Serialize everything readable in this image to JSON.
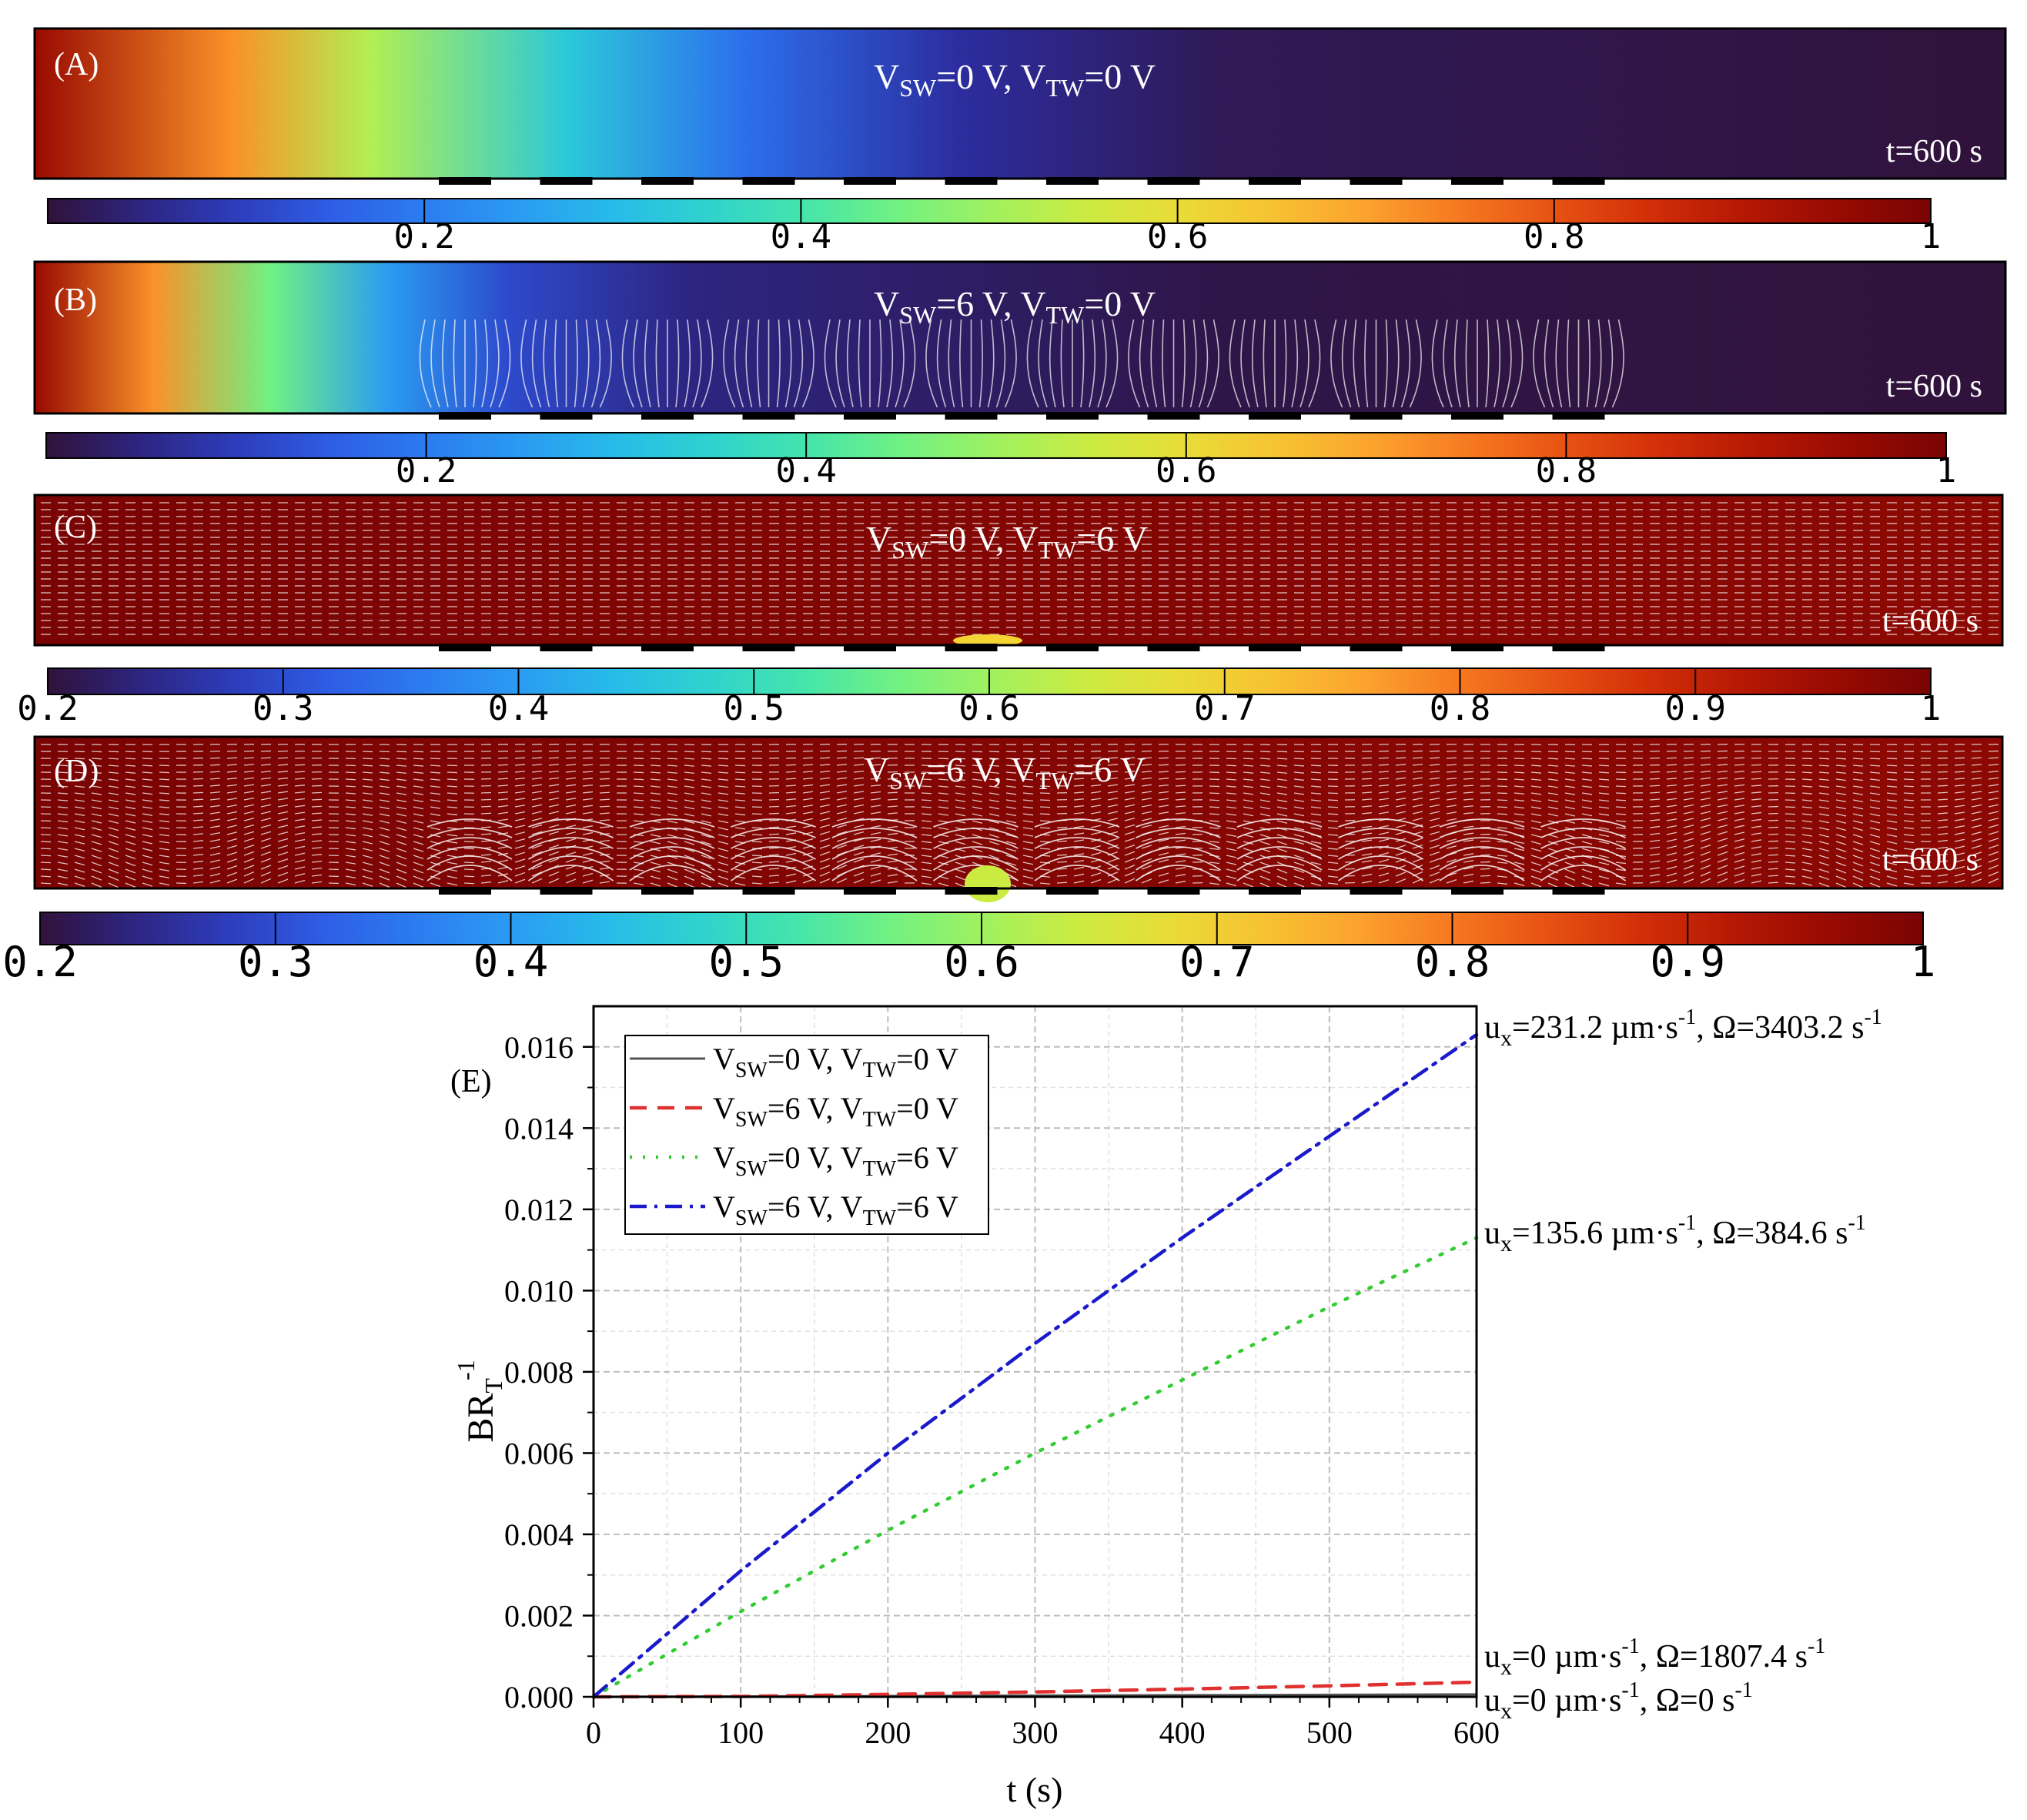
{
  "colors": {
    "colormap": [
      "#30123b",
      "#2c2fa8",
      "#2e5fe8",
      "#2b8ff5",
      "#26c0e8",
      "#36e0b8",
      "#7af47a",
      "#c4ee45",
      "#f2d733",
      "#fda830",
      "#f4681a",
      "#d43108",
      "#a80d02",
      "#7a0403"
    ],
    "frame": "#000000",
    "grid": "#bdbdbd",
    "series": [
      "#555555",
      "#e03030",
      "#33cc33",
      "#1a1acc"
    ]
  },
  "panels": [
    {
      "label": "(A)",
      "title": {
        "v1": "V",
        "s1": "SW",
        "r1": "=0 V, ",
        "v2": "V",
        "s2": "TW",
        "r2": "=0 V"
      },
      "time": "t=600 s",
      "gradient": [
        [
          0,
          0.95
        ],
        [
          0.1,
          0.72
        ],
        [
          0.17,
          0.52
        ],
        [
          0.27,
          0.33
        ],
        [
          0.36,
          0.18
        ],
        [
          0.47,
          0.07
        ],
        [
          0.6,
          0.02
        ],
        [
          1,
          0
        ]
      ],
      "arrows": "none",
      "colorbar": {
        "ticks": [
          "0.2",
          "0.4",
          "0.6",
          "0.8",
          "1"
        ],
        "values": [
          0.2,
          0.4,
          0.6,
          0.8,
          1.0
        ],
        "min": 0.0
      }
    },
    {
      "label": "(B)",
      "title": {
        "v1": "V",
        "s1": "SW",
        "r1": "=6 V, ",
        "v2": "V",
        "s2": "TW",
        "r2": "=0 V"
      },
      "time": "t=600 s",
      "gradient": [
        [
          0,
          0.95
        ],
        [
          0.06,
          0.72
        ],
        [
          0.12,
          0.45
        ],
        [
          0.18,
          0.25
        ],
        [
          0.24,
          0.12
        ],
        [
          0.33,
          0.05
        ],
        [
          0.6,
          0.01
        ],
        [
          1,
          0
        ]
      ],
      "arrows": "vortex",
      "colorbar": {
        "ticks": [
          "0.2",
          "0.4",
          "0.6",
          "0.8",
          "1"
        ],
        "values": [
          0.2,
          0.4,
          0.6,
          0.8,
          1.0
        ],
        "min": 0.0
      }
    },
    {
      "label": "(C)",
      "title": {
        "v1": "V",
        "s1": "SW",
        "r1": "=0 V, ",
        "v2": "V",
        "s2": "TW",
        "r2": "=6 V"
      },
      "time": "t=600 s",
      "gradient": [
        [
          0,
          1.0
        ],
        [
          1,
          0.97
        ]
      ],
      "arrows": "flow",
      "colorbar": {
        "ticks": [
          "0.2",
          "0.3",
          "0.4",
          "0.5",
          "0.6",
          "0.7",
          "0.8",
          "0.9",
          "1"
        ],
        "values": [
          0.2,
          0.3,
          0.4,
          0.5,
          0.6,
          0.7,
          0.8,
          0.9,
          1.0
        ],
        "min": 0.2
      }
    },
    {
      "label": "(D)",
      "title": {
        "v1": "V",
        "s1": "SW",
        "r1": "=6 V, ",
        "v2": "V",
        "s2": "TW",
        "r2": "=6 V"
      },
      "time": "t=600 s",
      "gradient": [
        [
          0,
          1.0
        ],
        [
          1,
          0.97
        ]
      ],
      "arrows": "wavy",
      "colorbar": {
        "ticks": [
          "0.2",
          "0.3",
          "0.4",
          "0.5",
          "0.6",
          "0.7",
          "0.8",
          "0.9",
          "1"
        ],
        "values": [
          0.2,
          0.3,
          0.4,
          0.5,
          0.6,
          0.7,
          0.8,
          0.9,
          1.0
        ],
        "min": 0.2
      }
    }
  ],
  "chart_data": {
    "type": "line",
    "panel_label": "(E)",
    "xlabel": "t (s)",
    "ylabel": {
      "base": "BR",
      "sub": "T",
      "sup": "-1"
    },
    "xlim": [
      0,
      600
    ],
    "ylim": [
      0,
      0.017
    ],
    "xticks": [
      0,
      100,
      200,
      300,
      400,
      500,
      600
    ],
    "xtick_labels": [
      "0",
      "100",
      "200",
      "300",
      "400",
      "500",
      "600"
    ],
    "yticks": [
      0,
      0.002,
      0.004,
      0.006,
      0.008,
      0.01,
      0.012,
      0.014,
      0.016
    ],
    "ytick_labels": [
      "0.000",
      "0.002",
      "0.004",
      "0.006",
      "0.008",
      "0.010",
      "0.012",
      "0.014",
      "0.016"
    ],
    "grid": true,
    "legend_position": "top-left",
    "series": [
      {
        "name": "VSW=0 V, VTW=0 V",
        "legend": {
          "v1": "V",
          "s1": "SW",
          "r1": "=0 V, ",
          "v2": "V",
          "s2": "TW",
          "r2": "=0 V"
        },
        "style": "solid",
        "color_index": 0,
        "x": [
          0,
          100,
          200,
          300,
          400,
          500,
          600
        ],
        "y": [
          0,
          1e-05,
          2e-05,
          3e-05,
          4e-05,
          5e-05,
          6e-05
        ]
      },
      {
        "name": "VSW=6 V, VTW=0 V",
        "legend": {
          "v1": "V",
          "s1": "SW",
          "r1": "=6 V, ",
          "v2": "V",
          "s2": "TW",
          "r2": "=0 V"
        },
        "style": "dashed",
        "color_index": 1,
        "x": [
          0,
          100,
          200,
          300,
          400,
          500,
          600
        ],
        "y": [
          0,
          1e-05,
          6e-05,
          0.00012,
          0.00019,
          0.00027,
          0.00036
        ]
      },
      {
        "name": "VSW=0 V, VTW=6 V",
        "legend": {
          "v1": "V",
          "s1": "SW",
          "r1": "=0 V, ",
          "v2": "V",
          "s2": "TW",
          "r2": "=6 V"
        },
        "style": "dotted",
        "color_index": 2,
        "x": [
          0,
          100,
          200,
          300,
          400,
          500,
          600
        ],
        "y": [
          0,
          0.0021,
          0.0041,
          0.006,
          0.0078,
          0.0096,
          0.0113
        ]
      },
      {
        "name": "VSW=6 V, VTW=6 V",
        "legend": {
          "v1": "V",
          "s1": "SW",
          "r1": "=6 V, ",
          "v2": "V",
          "s2": "TW",
          "r2": "=6 V"
        },
        "style": "dashdot",
        "color_index": 3,
        "x": [
          0,
          100,
          200,
          300,
          400,
          500,
          600
        ],
        "y": [
          0,
          0.0031,
          0.006,
          0.0087,
          0.0113,
          0.0138,
          0.0163
        ]
      }
    ],
    "annotations": [
      {
        "u": "u",
        "usub": "x",
        "ux": "=231.2 µm·s",
        "sup1": "-1",
        "om": ", Ω=3403.2 s",
        "sup2": "-1",
        "y": 0.0163
      },
      {
        "u": "u",
        "usub": "x",
        "ux": "=135.6 µm·s",
        "sup1": "-1",
        "om": ", Ω=384.6 s",
        "sup2": "-1",
        "y": 0.0113
      },
      {
        "u": "u",
        "usub": "x",
        "ux": "=0 µm·s",
        "sup1": "-1",
        "om": ", Ω=1807.4 s",
        "sup2": "-1",
        "y": 0.00036
      },
      {
        "u": "u",
        "usub": "x",
        "ux": "=0 µm·s",
        "sup1": "-1",
        "om": ", Ω=0 s",
        "sup2": "-1",
        "y": 6e-05
      }
    ]
  }
}
